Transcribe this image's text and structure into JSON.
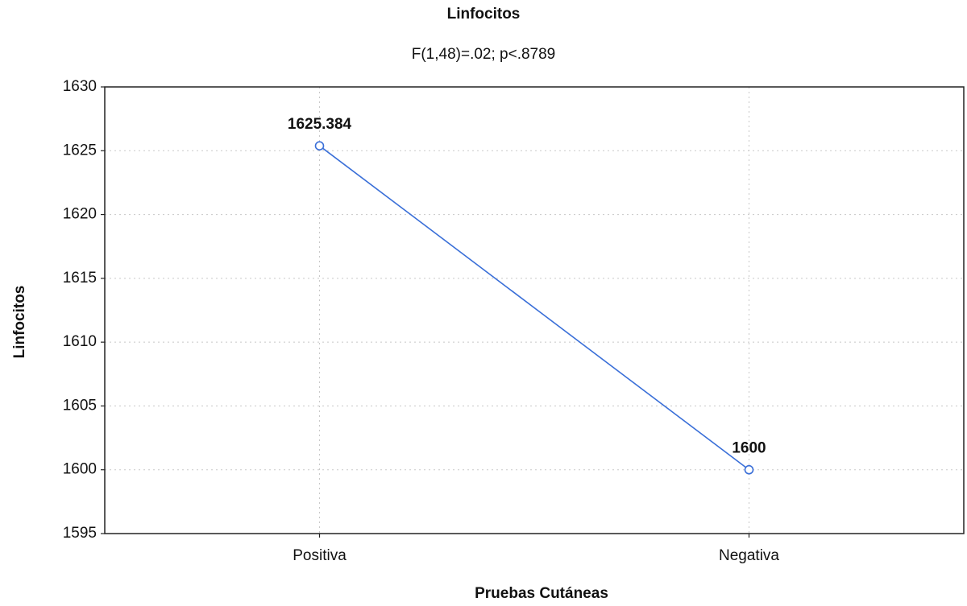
{
  "chart_data": {
    "type": "line",
    "title": "Linfocitos",
    "subtitle": "F(1,48)=.02; p<.8789",
    "xlabel": "Pruebas Cutáneas",
    "ylabel": "Linfocitos",
    "categories": [
      "Positiva",
      "Negativa"
    ],
    "values": [
      1625.384,
      1600
    ],
    "color": "#3a6fd8",
    "ylim": [
      1595,
      1630
    ],
    "yticks": [
      1595,
      1600,
      1605,
      1610,
      1615,
      1620,
      1625,
      1630
    ],
    "grid": true
  }
}
